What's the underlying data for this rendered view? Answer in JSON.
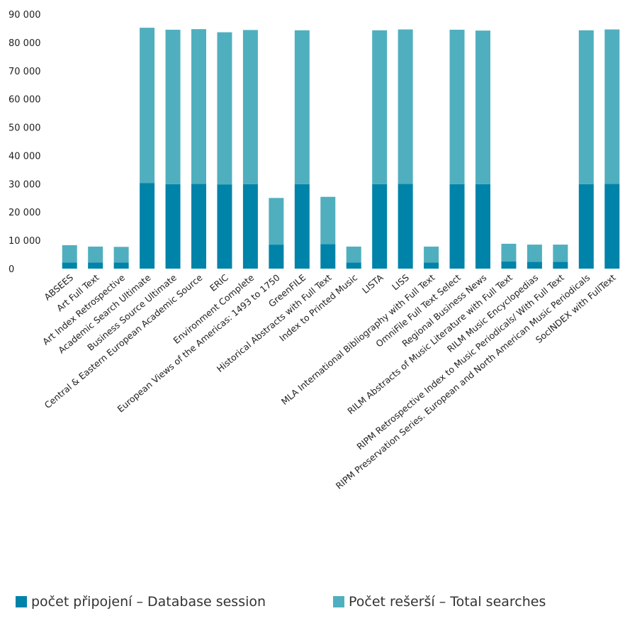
{
  "chart_data": {
    "type": "bar",
    "stacked": true,
    "ylim": [
      0,
      90000
    ],
    "yticks": [
      0,
      10000,
      20000,
      30000,
      40000,
      50000,
      60000,
      70000,
      80000,
      90000
    ],
    "ytick_labels": [
      "0",
      "10 000",
      "20 000",
      "30 000",
      "40 000",
      "50 000",
      "60 000",
      "70 000",
      "80 000",
      "90 000"
    ],
    "grid": false,
    "legend_position": "bottom",
    "categories": [
      "ABSEES",
      "Art Full Text",
      "Art Index Retrospective",
      "Academic Search Ultimate",
      "Business Source Ultimate",
      "Central & Eastern European Academic Source",
      "ERIC",
      "Environment Complete",
      "European Views of the Americas: 1493 to 1750",
      "GreenFILE",
      "Historical Abstracts with Full Text",
      "Index to Printed Music",
      "LISTA",
      "LISS",
      "MLA International Bibliography with Full Text",
      "OmniFile Full Text Select",
      "Regional Business News",
      "RILM Abstracts of Music Literature with Full Text",
      "RILM Music Encyclopedias",
      "RIPM Retrospective Index to Music Periodicals/ With Full Text",
      "RIPM Preservation Series. European and North American Music Periodicals",
      "SocINDEX with FullText"
    ],
    "series": [
      {
        "name": "počet připojení – Database session",
        "color": "#0083A9",
        "values": [
          2200,
          2200,
          2200,
          30300,
          29900,
          30000,
          29800,
          29900,
          8500,
          29900,
          8700,
          2200,
          29900,
          30000,
          2200,
          29900,
          29900,
          2500,
          2400,
          2400,
          29900,
          30000
        ]
      },
      {
        "name": "Počet rešerší – Total searches",
        "color": "#50AFBE",
        "values": [
          6100,
          5600,
          5500,
          54900,
          54600,
          54700,
          53800,
          54500,
          16500,
          54400,
          16700,
          5600,
          54400,
          54600,
          5600,
          54600,
          54300,
          6300,
          6100,
          6100,
          54400,
          54600
        ]
      }
    ]
  }
}
